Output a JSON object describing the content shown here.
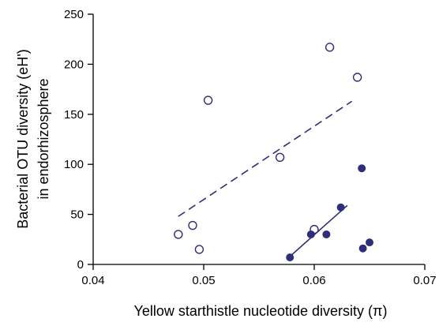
{
  "chart_data": {
    "type": "scatter",
    "title": "",
    "xlabel": "Yellow starthistle nucleotide diversity (π)",
    "ylabel_lines": [
      "Bacterial OTU diversity (eH')",
      "in endorhizosphere"
    ],
    "xlim": [
      0.04,
      0.07
    ],
    "ylim": [
      0,
      250
    ],
    "x_ticks": [
      0.04,
      0.05,
      0.06,
      0.07
    ],
    "x_tick_labels": [
      "0.04",
      "0.05",
      "0.06",
      "0.07"
    ],
    "y_ticks": [
      0,
      50,
      100,
      150,
      200,
      250
    ],
    "y_tick_labels": [
      "0",
      "50",
      "100",
      "150",
      "200",
      "250"
    ],
    "grid": false,
    "marker_color": "#2e2e7a",
    "series": [
      {
        "marker": "open-circle",
        "points": [
          {
            "x": 0.0477,
            "y": 30
          },
          {
            "x": 0.049,
            "y": 39
          },
          {
            "x": 0.0496,
            "y": 15
          },
          {
            "x": 0.0504,
            "y": 164
          },
          {
            "x": 0.0569,
            "y": 107
          },
          {
            "x": 0.06,
            "y": 35
          },
          {
            "x": 0.0614,
            "y": 217
          },
          {
            "x": 0.0639,
            "y": 187
          }
        ],
        "trendline": {
          "style": "dashed",
          "x": [
            0.0477,
            0.0634
          ],
          "y": [
            48,
            163
          ]
        }
      },
      {
        "marker": "filled-circle",
        "points": [
          {
            "x": 0.0578,
            "y": 7
          },
          {
            "x": 0.0597,
            "y": 30
          },
          {
            "x": 0.0611,
            "y": 30
          },
          {
            "x": 0.0624,
            "y": 57
          },
          {
            "x": 0.0643,
            "y": 96
          },
          {
            "x": 0.0644,
            "y": 16
          },
          {
            "x": 0.065,
            "y": 22
          }
        ],
        "trendline": {
          "style": "solid",
          "x": [
            0.0577,
            0.063
          ],
          "y": [
            7,
            59
          ]
        }
      }
    ]
  }
}
